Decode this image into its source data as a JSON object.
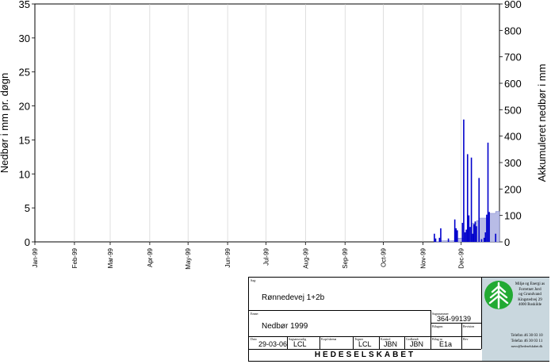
{
  "chart_data": {
    "type": "bar",
    "left_axis": {
      "label": "Nedbør i mm pr. døgn",
      "ticks": [
        0,
        5,
        10,
        15,
        20,
        25,
        30,
        35
      ],
      "range": [
        0,
        35
      ]
    },
    "right_axis": {
      "label": "Akkumuleret nedbør i mm",
      "ticks": [
        0,
        100,
        200,
        300,
        400,
        500,
        600,
        700,
        800,
        900
      ],
      "range": [
        0,
        900
      ]
    },
    "x_axis": {
      "start": "1999-01-01",
      "end": "1999-12-31",
      "grid": true,
      "ticks": [
        {
          "date": "1999-01-01",
          "label": "Jan-99"
        },
        {
          "date": "1999-02-01",
          "label": "Feb-99"
        },
        {
          "date": "1999-03-01",
          "label": "Mar-99"
        },
        {
          "date": "1999-04-01",
          "label": "Apr-99"
        },
        {
          "date": "1999-05-01",
          "label": "May-99"
        },
        {
          "date": "1999-06-01",
          "label": "Jun-99"
        },
        {
          "date": "1999-07-01",
          "label": "Jul-99"
        },
        {
          "date": "1999-08-01",
          "label": "Aug-99"
        },
        {
          "date": "1999-09-01",
          "label": "Sep-99"
        },
        {
          "date": "1999-10-01",
          "label": "Oct-99"
        },
        {
          "date": "1999-11-01",
          "label": "Nov-99"
        },
        {
          "date": "1999-12-01",
          "label": "Dec-99"
        }
      ]
    },
    "series": [
      {
        "kind": "daily",
        "axis": "left",
        "color": "#0000cc",
        "points": [
          {
            "date": "1999-11-10",
            "value": 1.2
          },
          {
            "date": "1999-11-11",
            "value": 0.5
          },
          {
            "date": "1999-11-14",
            "value": 0.6
          },
          {
            "date": "1999-11-15",
            "value": 2.0
          },
          {
            "date": "1999-11-21",
            "value": 0.5
          },
          {
            "date": "1999-11-26",
            "value": 3.3
          },
          {
            "date": "1999-11-27",
            "value": 2.0
          },
          {
            "date": "1999-11-28",
            "value": 1.7
          },
          {
            "date": "1999-12-02",
            "value": 2.8
          },
          {
            "date": "1999-12-03",
            "value": 18.0
          },
          {
            "date": "1999-12-04",
            "value": 1.4
          },
          {
            "date": "1999-12-05",
            "value": 1.8
          },
          {
            "date": "1999-12-06",
            "value": 12.9
          },
          {
            "date": "1999-12-07",
            "value": 3.9
          },
          {
            "date": "1999-12-08",
            "value": 2.2
          },
          {
            "date": "1999-12-09",
            "value": 12.4
          },
          {
            "date": "1999-12-10",
            "value": 1.2
          },
          {
            "date": "1999-12-11",
            "value": 2.6
          },
          {
            "date": "1999-12-12",
            "value": 3.0
          },
          {
            "date": "1999-12-13",
            "value": 2.3
          },
          {
            "date": "1999-12-15",
            "value": 9.4
          },
          {
            "date": "1999-12-17",
            "value": 0.4
          },
          {
            "date": "1999-12-19",
            "value": 0.6
          },
          {
            "date": "1999-12-20",
            "value": 1.4
          },
          {
            "date": "1999-12-21",
            "value": 4.0
          },
          {
            "date": "1999-12-22",
            "value": 14.6
          },
          {
            "date": "1999-12-23",
            "value": 4.4
          },
          {
            "date": "1999-12-28",
            "value": 1.2
          }
        ]
      },
      {
        "kind": "cumulative",
        "axis": "right",
        "color": "#b8bce6",
        "points": [
          {
            "date": "1999-11-10",
            "value": 1
          },
          {
            "date": "1999-11-15",
            "value": 4
          },
          {
            "date": "1999-11-26",
            "value": 8
          },
          {
            "date": "1999-11-28",
            "value": 14
          },
          {
            "date": "1999-12-03",
            "value": 35
          },
          {
            "date": "1999-12-06",
            "value": 52
          },
          {
            "date": "1999-12-09",
            "value": 70
          },
          {
            "date": "1999-12-13",
            "value": 80
          },
          {
            "date": "1999-12-15",
            "value": 90
          },
          {
            "date": "1999-12-22",
            "value": 108
          },
          {
            "date": "1999-12-28",
            "value": 115
          }
        ]
      }
    ]
  },
  "title_block": {
    "sag_label": "Sag:",
    "sag_value": "Rønnedevej 1+2b",
    "emne_label": "Emne:",
    "emne_value": "Nedbør 1999",
    "sagsnummer_label": "Sagsnummer",
    "sagsnummer_value": "364-99139",
    "bilagsnr_label": "Bilagsnr.",
    "revision_label": "Revision",
    "dato_label": "Dato",
    "dato_value": "29-03-06",
    "sagsansvarlig_label": "Sagsansvarlig",
    "sagsansvarlig_value": "LCL",
    "kopi_label": "Kopi/skema",
    "tegner_label": "Tegner",
    "tegner_value": "LCL",
    "kontrol_label": "Kontrol",
    "kontrol_value": "JBN",
    "godkendt_label": "Godkendt",
    "godkendt_value": "JBN",
    "bilag_label": "Bilag nr",
    "bilag_value": "E1a",
    "rev_label": "Rev",
    "company": "HEDESELSKABET",
    "company_unit": "Miljø og Energi as",
    "address": [
      "Forretnet Jord",
      "og Grundvand",
      "Kingstedvej 29",
      "4000 Roskilde"
    ],
    "telefon": "Telefon 46 30 03 10",
    "telefax": "Telefax 46 30 03 11",
    "email": "mevo@hedeselskabet.dk",
    "logo_color": "#22aa33",
    "panel_color": "#c9d7de"
  }
}
